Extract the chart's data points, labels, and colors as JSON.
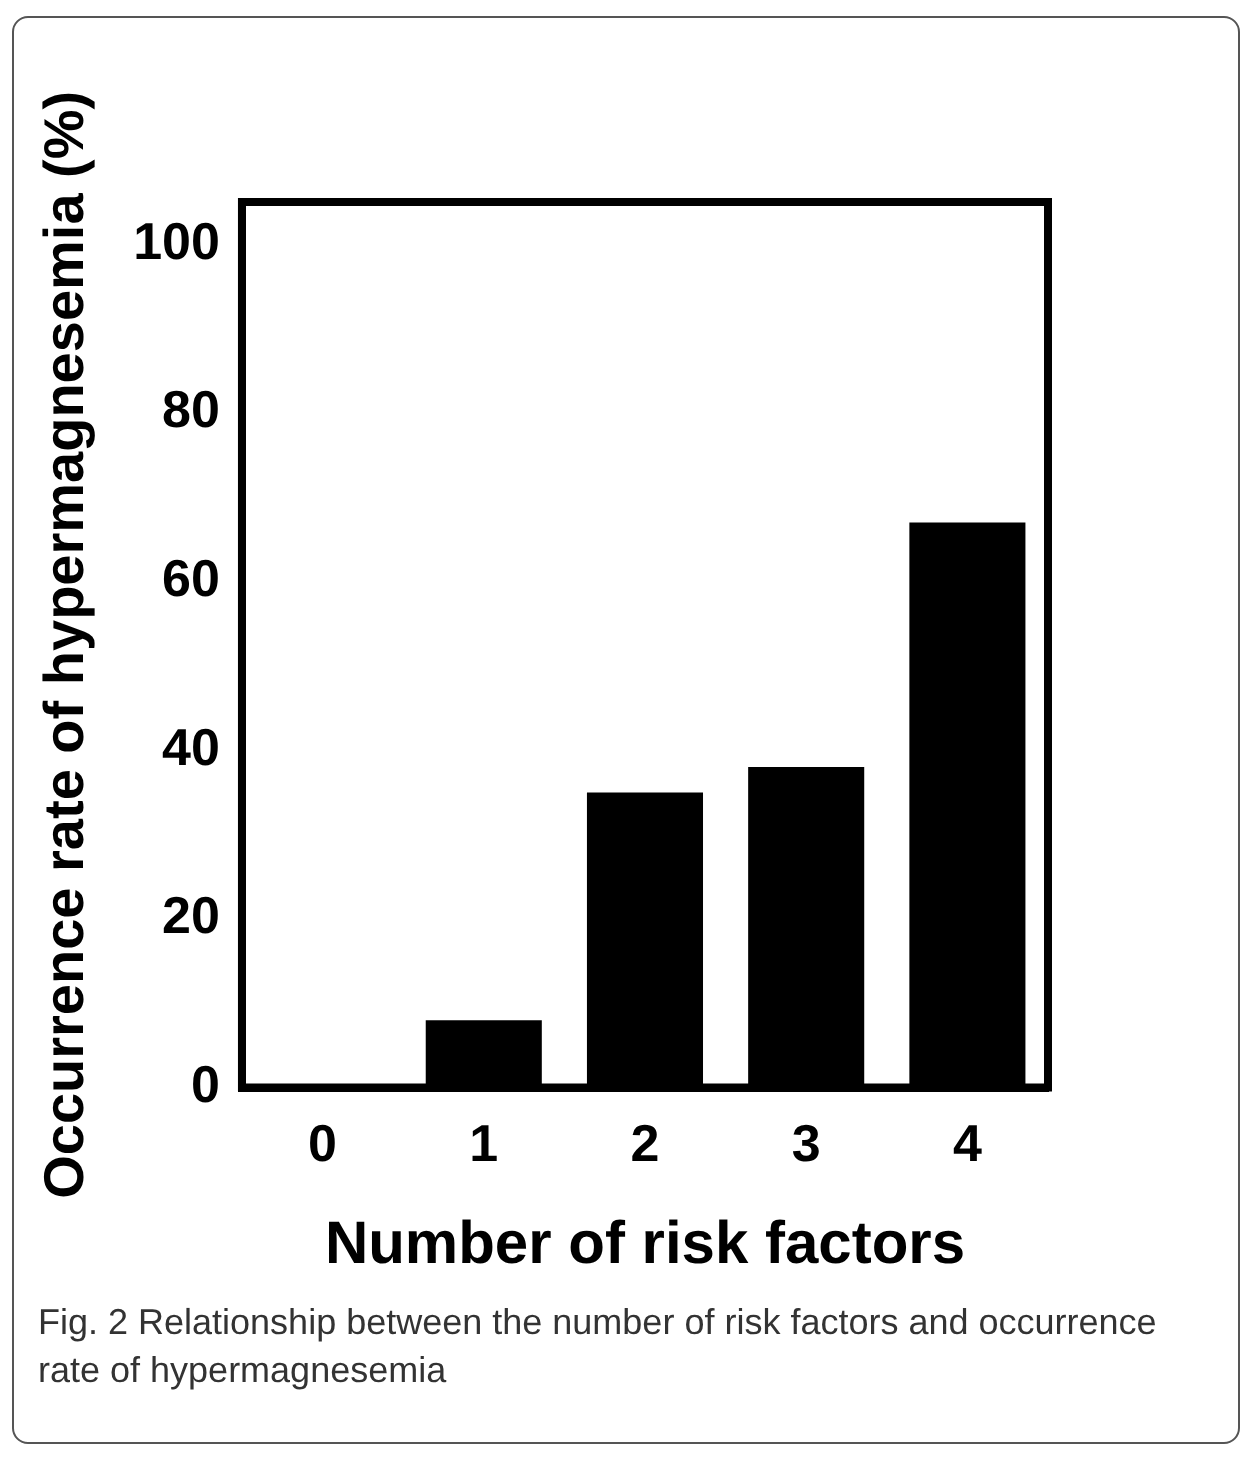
{
  "chart_data": {
    "type": "bar",
    "xlabel": "Number of risk factors",
    "ylabel": "Occurrence rate of hypermagnesemia (%)",
    "categories": [
      "0",
      "1",
      "2",
      "3",
      "4"
    ],
    "values": [
      0,
      8,
      35,
      38,
      67
    ],
    "color": "#000000",
    "ylim": [
      0,
      105
    ],
    "yticks": [
      0,
      20,
      40,
      60,
      80,
      100
    ],
    "grid": false,
    "legend": false,
    "annotations": [
      "Fig. 2 Relationship between the number of risk factors and occurrence rate of hypermagnesemia"
    ]
  }
}
